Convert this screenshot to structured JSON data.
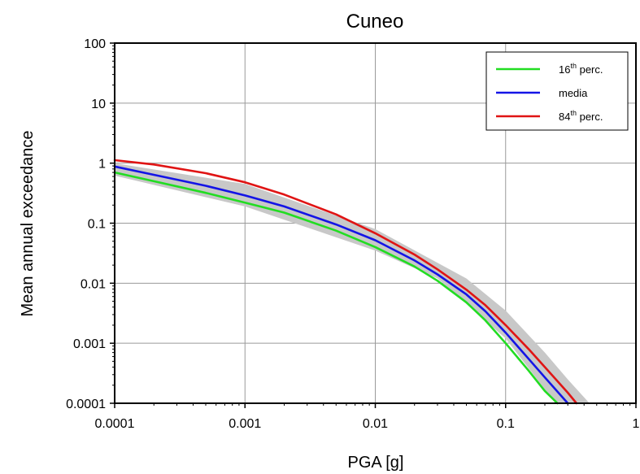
{
  "chart_data": {
    "type": "line",
    "title": "Cuneo",
    "xlabel": "PGA [g]",
    "ylabel": "Mean annual exceedance",
    "x_scale": "log",
    "y_scale": "log",
    "xlim": [
      0.0001,
      1
    ],
    "ylim": [
      0.0001,
      100
    ],
    "x_ticks": [
      0.0001,
      0.001,
      0.01,
      0.1,
      1
    ],
    "x_tick_labels": [
      "0.0001",
      "0.001",
      "0.01",
      "0.1",
      "1"
    ],
    "y_ticks": [
      0.0001,
      0.001,
      0.01,
      0.1,
      1,
      10,
      100
    ],
    "y_tick_labels": [
      "0.0001",
      "0.001",
      "0.01",
      "0.1",
      "1",
      "10",
      "100"
    ],
    "grid": true,
    "legend_position": "top-right",
    "band": {
      "color": "#c8c8c8",
      "lower": [
        [
          0.0001,
          0.62
        ],
        [
          0.001,
          0.19
        ],
        [
          0.01,
          0.035
        ],
        [
          0.03,
          0.012
        ],
        [
          0.1,
          0.0012
        ],
        [
          0.2,
          0.00017
        ],
        [
          0.24,
          0.0001
        ]
      ],
      "upper": [
        [
          0.0001,
          1.0
        ],
        [
          0.001,
          0.45
        ],
        [
          0.01,
          0.08
        ],
        [
          0.05,
          0.012
        ],
        [
          0.1,
          0.0035
        ],
        [
          0.2,
          0.0007
        ],
        [
          0.3,
          0.00025
        ],
        [
          0.44,
          0.0001
        ]
      ]
    },
    "series": [
      {
        "name_main": "16",
        "name_sup": "th",
        "name_tail": " perc.",
        "color": "#22dd22",
        "points": [
          [
            0.0001,
            0.7
          ],
          [
            0.0002,
            0.5
          ],
          [
            0.0005,
            0.32
          ],
          [
            0.001,
            0.22
          ],
          [
            0.002,
            0.15
          ],
          [
            0.005,
            0.075
          ],
          [
            0.01,
            0.04
          ],
          [
            0.02,
            0.019
          ],
          [
            0.03,
            0.011
          ],
          [
            0.05,
            0.0048
          ],
          [
            0.07,
            0.0024
          ],
          [
            0.1,
            0.001
          ],
          [
            0.15,
            0.00035
          ],
          [
            0.2,
            0.00016
          ],
          [
            0.25,
            0.0001
          ]
        ]
      },
      {
        "name_main": "media",
        "name_sup": "",
        "name_tail": "",
        "color": "#1414e6",
        "points": [
          [
            0.0001,
            0.88
          ],
          [
            0.0002,
            0.64
          ],
          [
            0.0005,
            0.42
          ],
          [
            0.001,
            0.29
          ],
          [
            0.002,
            0.19
          ],
          [
            0.005,
            0.095
          ],
          [
            0.01,
            0.052
          ],
          [
            0.02,
            0.024
          ],
          [
            0.03,
            0.014
          ],
          [
            0.05,
            0.0065
          ],
          [
            0.07,
            0.0034
          ],
          [
            0.1,
            0.0015
          ],
          [
            0.15,
            0.00055
          ],
          [
            0.2,
            0.00027
          ],
          [
            0.3,
            0.0001
          ]
        ]
      },
      {
        "name_main": "84",
        "name_sup": "th",
        "name_tail": " perc.",
        "color": "#e01414",
        "points": [
          [
            0.0001,
            1.12
          ],
          [
            0.0002,
            0.95
          ],
          [
            0.0005,
            0.68
          ],
          [
            0.001,
            0.48
          ],
          [
            0.002,
            0.3
          ],
          [
            0.005,
            0.14
          ],
          [
            0.01,
            0.068
          ],
          [
            0.02,
            0.03
          ],
          [
            0.03,
            0.017
          ],
          [
            0.05,
            0.0078
          ],
          [
            0.07,
            0.0043
          ],
          [
            0.1,
            0.002
          ],
          [
            0.15,
            0.0008
          ],
          [
            0.2,
            0.0004
          ],
          [
            0.3,
            0.00015
          ],
          [
            0.35,
            0.0001
          ]
        ]
      }
    ]
  }
}
